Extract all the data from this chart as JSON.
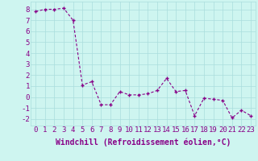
{
  "x": [
    0,
    1,
    2,
    3,
    4,
    5,
    6,
    7,
    8,
    9,
    10,
    11,
    12,
    13,
    14,
    15,
    16,
    17,
    18,
    19,
    20,
    21,
    22,
    23
  ],
  "y": [
    7.8,
    8.0,
    8.0,
    8.1,
    7.0,
    1.1,
    1.4,
    -0.7,
    -0.7,
    0.5,
    0.2,
    0.2,
    0.3,
    0.6,
    1.7,
    0.5,
    0.6,
    -1.7,
    -0.1,
    -0.2,
    -0.3,
    -1.9,
    -1.2,
    -1.7
  ],
  "line_color": "#880088",
  "marker": "+",
  "bg_color": "#cef5f0",
  "grid_color": "#aadddd",
  "xlabel": "Windchill (Refroidissement éolien,°C)",
  "ylabel_ticks": [
    -2,
    -1,
    0,
    1,
    2,
    3,
    4,
    5,
    6,
    7,
    8
  ],
  "ylim": [
    -2.6,
    8.7
  ],
  "xlim": [
    -0.5,
    23.5
  ],
  "label_color": "#880088",
  "tick_color": "#880088",
  "font_size": 6.5,
  "xlabel_font_size": 7.0
}
